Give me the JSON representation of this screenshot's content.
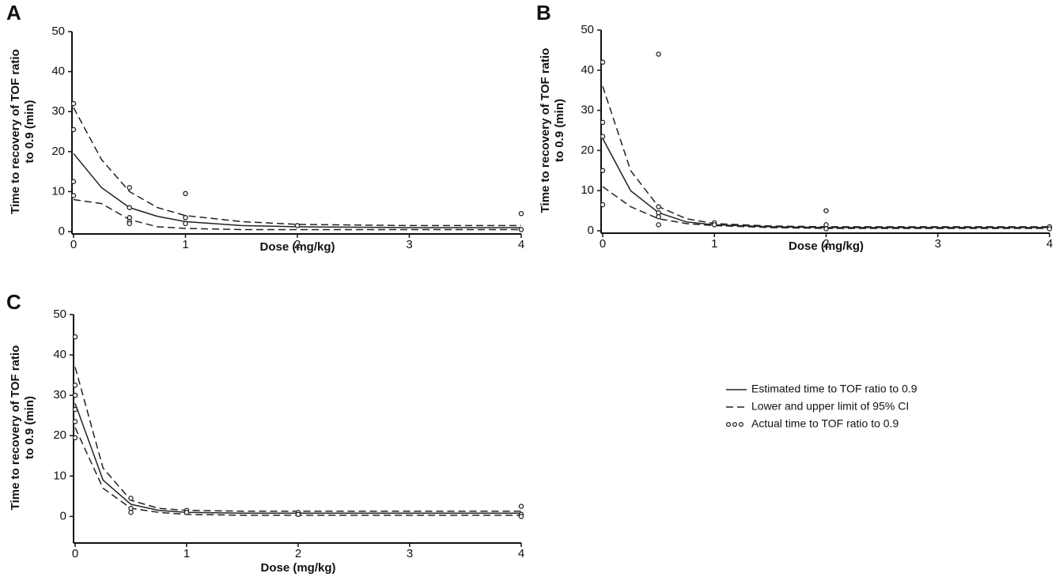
{
  "chart_data": [
    {
      "type": "line",
      "label": "A",
      "xlabel": "Dose (mg/kg)",
      "ylabel": [
        "Time to recovery of TOF ratio",
        "to 0.9 (min)"
      ],
      "xlim": [
        0,
        4
      ],
      "ylim": [
        0,
        50
      ],
      "xticks": [
        0,
        1,
        2,
        3,
        4
      ],
      "yticks": [
        0,
        10,
        20,
        30,
        40,
        50
      ],
      "color": "#222",
      "series": [
        {
          "style": "solid",
          "x": [
            0,
            0.25,
            0.5,
            0.75,
            1,
            1.5,
            2,
            3,
            4
          ],
          "values": [
            19.5,
            11,
            6,
            3.8,
            2.5,
            1.5,
            1.2,
            1,
            1
          ]
        },
        {
          "style": "dashed",
          "x": [
            0,
            0.25,
            0.5,
            0.75,
            1,
            1.5,
            2,
            3,
            4
          ],
          "values": [
            31,
            18,
            10,
            6,
            4,
            2.5,
            1.8,
            1.5,
            1.5
          ]
        },
        {
          "style": "dashed",
          "x": [
            0,
            0.25,
            0.5,
            0.75,
            1,
            1.5,
            2,
            3,
            4
          ],
          "values": [
            8,
            7,
            3,
            1.2,
            0.8,
            0.5,
            0.5,
            0.5,
            0.5
          ]
        }
      ],
      "points": {
        "x": [
          0,
          0,
          0,
          0,
          0.5,
          0.5,
          0.5,
          0.5,
          0.5,
          1,
          1,
          1,
          2,
          4,
          4
        ],
        "y": [
          32,
          25.5,
          12.5,
          9,
          11,
          6,
          3.5,
          2.5,
          2,
          9.5,
          3.5,
          2,
          1.5,
          4.5,
          0.5
        ]
      }
    },
    {
      "type": "line",
      "label": "B",
      "xlabel": "Dose (mg/kg)",
      "ylabel": [
        "Time to recovery of TOF ratio",
        "to 0.9 (min)"
      ],
      "xlim": [
        0,
        4
      ],
      "ylim": [
        0,
        50
      ],
      "xticks": [
        0,
        1,
        2,
        3,
        4
      ],
      "yticks": [
        0,
        10,
        20,
        30,
        40,
        50
      ],
      "color": "#222",
      "series": [
        {
          "style": "solid",
          "x": [
            0,
            0.25,
            0.5,
            0.75,
            1,
            1.5,
            2,
            3,
            4
          ],
          "values": [
            23,
            10,
            4.5,
            2.2,
            1.5,
            1,
            0.8,
            0.8,
            0.8
          ]
        },
        {
          "style": "dashed",
          "x": [
            0,
            0.25,
            0.5,
            0.75,
            1,
            1.5,
            2,
            3,
            4
          ],
          "values": [
            36,
            15,
            6,
            3,
            1.8,
            1.2,
            1,
            1,
            1
          ]
        },
        {
          "style": "dashed",
          "x": [
            0,
            0.25,
            0.5,
            0.75,
            1,
            1.5,
            2,
            3,
            4
          ],
          "values": [
            11,
            6,
            3,
            1.8,
            1.3,
            0.8,
            0.6,
            0.6,
            0.6
          ]
        }
      ],
      "points": {
        "x": [
          0,
          0,
          0,
          0,
          0,
          0.5,
          0.5,
          0.5,
          0.5,
          0.5,
          1,
          1,
          2,
          2,
          2,
          4,
          4
        ],
        "y": [
          42,
          27,
          23.5,
          15,
          6.5,
          44,
          6,
          4.5,
          3.5,
          1.5,
          2,
          1.5,
          5,
          1.5,
          0.5,
          1,
          0.5
        ]
      }
    },
    {
      "type": "line",
      "label": "C",
      "xlabel": "Dose (mg/kg)",
      "ylabel": [
        "Time to recovery of TOF ratio",
        "to 0.9 (min)"
      ],
      "xlim": [
        0,
        4
      ],
      "ylim": [
        -6,
        50
      ],
      "xticks": [
        0,
        1,
        2,
        3,
        4
      ],
      "yticks": [
        0,
        10,
        20,
        30,
        40,
        50
      ],
      "color": "#222",
      "series": [
        {
          "style": "solid",
          "x": [
            0,
            0.25,
            0.5,
            0.75,
            1,
            1.5,
            2,
            3,
            4
          ],
          "values": [
            28,
            9,
            3,
            1.5,
            1,
            0.8,
            0.8,
            0.8,
            0.8
          ]
        },
        {
          "style": "dashed",
          "x": [
            0,
            0.25,
            0.5,
            0.75,
            1,
            1.5,
            2,
            3,
            4
          ],
          "values": [
            37,
            12,
            4,
            2,
            1.5,
            1.3,
            1.3,
            1.3,
            1.3
          ]
        },
        {
          "style": "dashed",
          "x": [
            0,
            0.25,
            0.5,
            0.75,
            1,
            1.5,
            2,
            3,
            4
          ],
          "values": [
            22,
            7,
            2,
            1,
            0.5,
            0.3,
            0.3,
            0.3,
            0.3
          ]
        }
      ],
      "points": {
        "x": [
          0,
          0,
          0,
          0,
          0,
          0,
          0.5,
          0.5,
          0.5,
          1,
          1,
          2,
          2,
          4,
          4,
          4
        ],
        "y": [
          44.5,
          32.5,
          30,
          26.5,
          23.5,
          19.5,
          4.5,
          2,
          1,
          1.5,
          1,
          1,
          0.5,
          2.5,
          0.5,
          0
        ]
      }
    }
  ],
  "legend": [
    {
      "label": "Estimated time to TOF ratio to 0.9",
      "style": "solid"
    },
    {
      "label": "Lower and upper limit of 95% CI",
      "style": "dashed"
    },
    {
      "label": "Actual time to TOF ratio to 0.9",
      "style": "points"
    }
  ]
}
